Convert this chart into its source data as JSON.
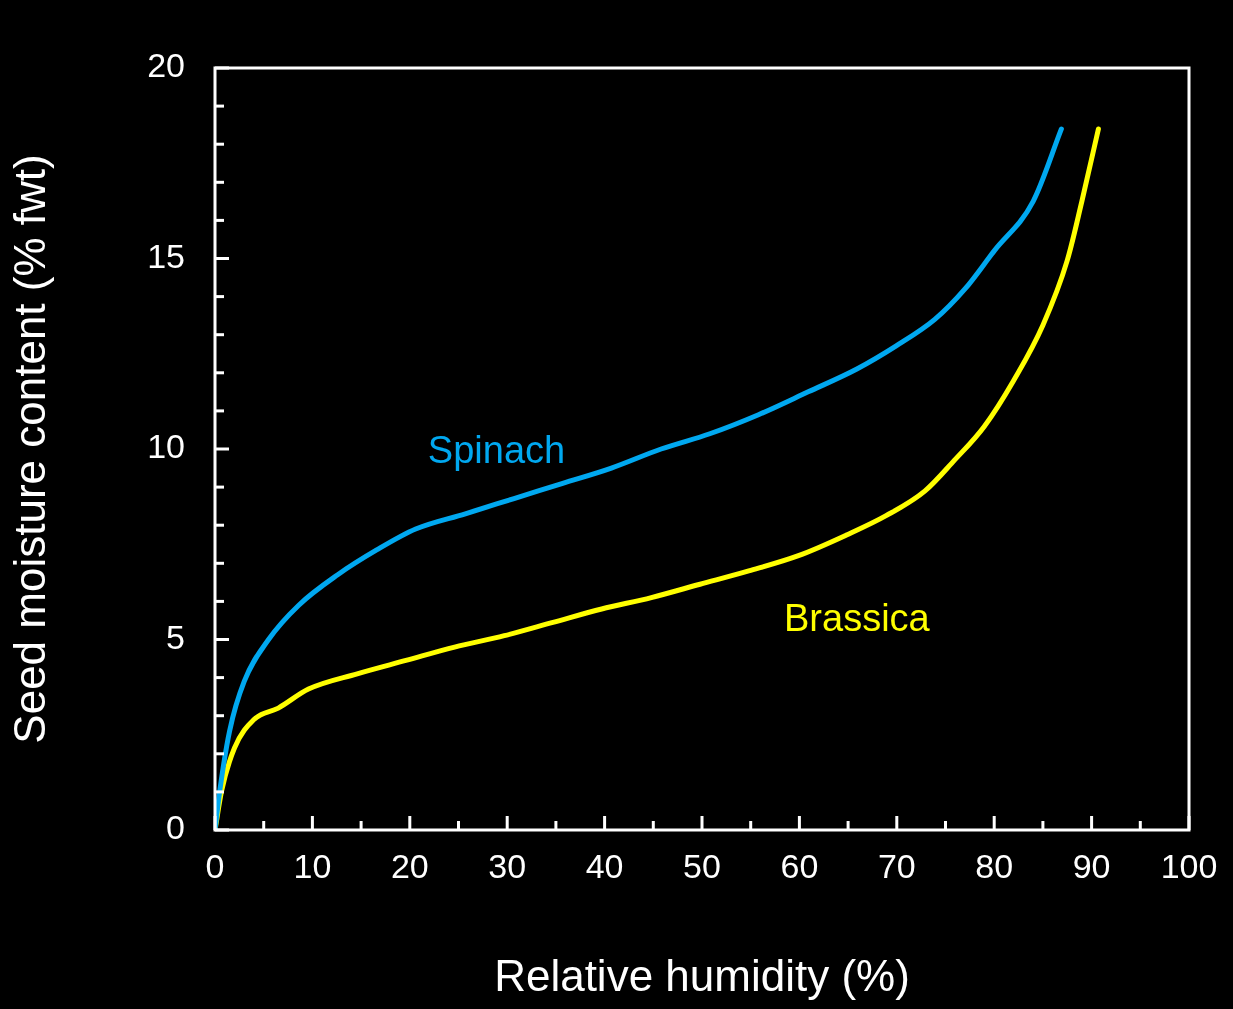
{
  "chart_data": {
    "type": "line",
    "xlabel": "Relative humidity (%)",
    "ylabel": "Seed moisture content (% fwt)",
    "xlim": [
      0,
      100
    ],
    "ylim": [
      0,
      20
    ],
    "xticks": [
      0,
      {
        "value": 5,
        "label": null
      },
      10,
      {
        "value": 15,
        "label": null
      },
      20,
      {
        "value": 25,
        "label": null
      },
      30,
      {
        "value": 35,
        "label": null
      },
      40,
      {
        "value": 45,
        "label": null
      },
      50,
      {
        "value": 55,
        "label": null
      },
      60,
      {
        "value": 65,
        "label": null
      },
      70,
      {
        "value": 75,
        "label": null
      },
      80,
      {
        "value": 85,
        "label": null
      },
      90,
      {
        "value": 95,
        "label": null
      },
      100
    ],
    "yticks": [
      0,
      {
        "value": 1,
        "label": null
      },
      {
        "value": 2,
        "label": null
      },
      {
        "value": 3,
        "label": null
      },
      {
        "value": 4,
        "label": null
      },
      5,
      {
        "value": 6,
        "label": null
      },
      {
        "value": 7,
        "label": null
      },
      {
        "value": 8,
        "label": null
      },
      {
        "value": 9,
        "label": null
      },
      10,
      {
        "value": 11,
        "label": null
      },
      {
        "value": 12,
        "label": null
      },
      {
        "value": 13,
        "label": null
      },
      {
        "value": 14,
        "label": null
      },
      15,
      {
        "value": 16,
        "label": null
      },
      {
        "value": 17,
        "label": null
      },
      {
        "value": 18,
        "label": null
      },
      {
        "value": 19,
        "label": null
      },
      20
    ],
    "grid": false,
    "legend": false,
    "marker": "none",
    "line_style": "solid",
    "series": [
      {
        "name": "Spinach",
        "color": "#00a8f0",
        "x": [
          0,
          0.5,
          1.5,
          3,
          5.5,
          8.6,
          12.6,
          16.6,
          20.6,
          25.7,
          30.7,
          35.7,
          40.7,
          45.8,
          50.8,
          55.8,
          60.9,
          65.9,
          69.9,
          73.9,
          77,
          80,
          84,
          86.9
        ],
        "values": [
          0,
          1.05,
          2.6,
          3.9,
          5.0,
          5.9,
          6.7,
          7.35,
          7.9,
          8.3,
          8.7,
          9.1,
          9.5,
          10.0,
          10.4,
          10.9,
          11.5,
          12.1,
          12.7,
          13.4,
          14.2,
          15.2,
          16.5,
          18.4
        ]
      },
      {
        "name": "Brassica",
        "color": "#ffff00",
        "x": [
          0,
          0.7,
          2,
          4,
          6.5,
          9.6,
          14.6,
          19.6,
          24.6,
          29.7,
          34.7,
          39.7,
          44.8,
          49.8,
          54.8,
          59.9,
          64.9,
          68.9,
          72.9,
          75.9,
          79,
          82,
          85,
          87.5,
          89,
          90.7
        ],
        "values": [
          0,
          1.05,
          2.15,
          2.9,
          3.2,
          3.7,
          4.1,
          4.45,
          4.8,
          5.1,
          5.45,
          5.8,
          6.1,
          6.45,
          6.8,
          7.2,
          7.75,
          8.25,
          8.9,
          9.7,
          10.6,
          11.8,
          13.25,
          14.95,
          16.5,
          18.4
        ]
      }
    ]
  }
}
